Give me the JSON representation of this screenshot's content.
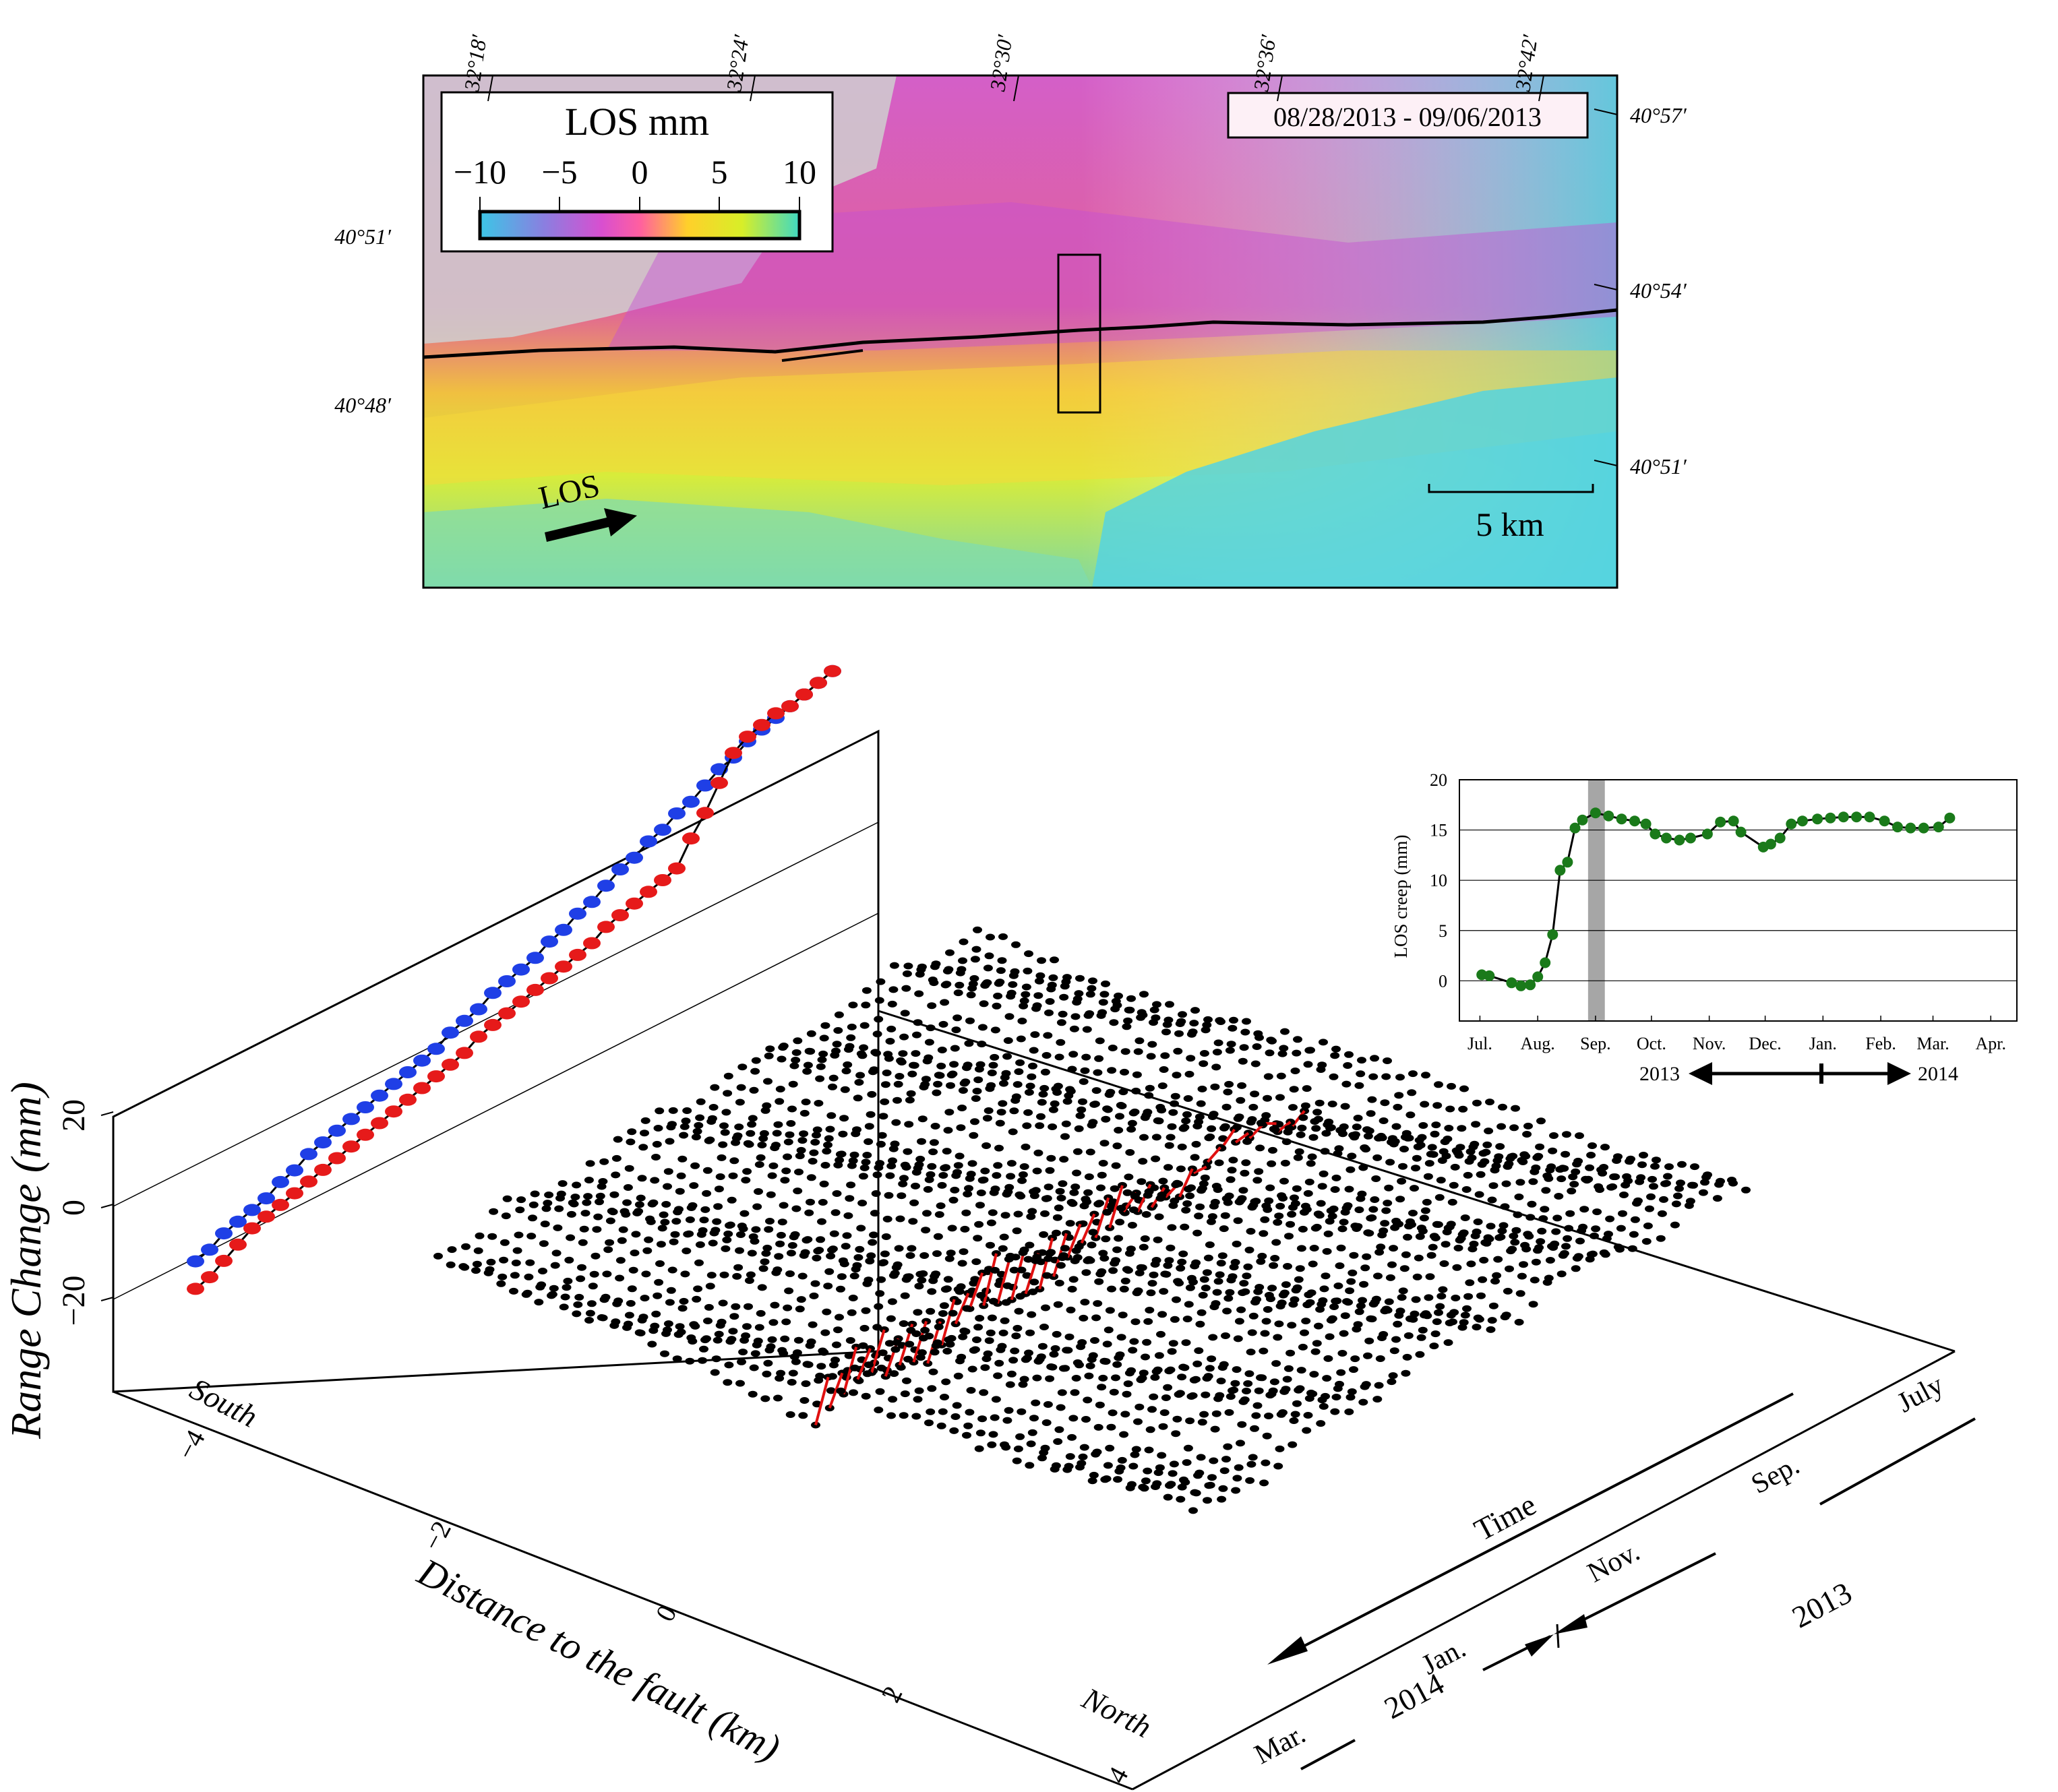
{
  "map": {
    "title": "LOS mm",
    "colorbar_ticks": [
      "−10",
      "−5",
      "0",
      "5",
      "10"
    ],
    "colorbar_colors": [
      "#3cc6e6",
      "#8a7fe0",
      "#d84fd0",
      "#ff5fa0",
      "#ffd02a",
      "#d8ee28",
      "#3fd9c2"
    ],
    "date_range": "08/28/2013 - 09/06/2013",
    "lon_ticks": [
      "32°18′",
      "32°24′",
      "32°30′",
      "32°36′",
      "32°42′"
    ],
    "lat_ticks_left": [
      "40°51′",
      "40°48′"
    ],
    "lat_ticks_right": [
      "40°57′",
      "40°54′",
      "40°51′"
    ],
    "los_label": "LOS",
    "scale_label": "5 km"
  },
  "inset": {
    "ylabel": "LOS creep (mm)",
    "ytick_labels": [
      "0",
      "5",
      "10",
      "15",
      "20"
    ],
    "xtick_labels": [
      "Jul.",
      "Aug.",
      "Sep.",
      "Oct.",
      "Nov.",
      "Dec.",
      "Jan.",
      "Feb.",
      "Mar.",
      "Apr."
    ],
    "year_left": "2013",
    "year_right": "2014",
    "shade_color": "#a6a6a6",
    "point_color": "#1a7a1a"
  },
  "main3d": {
    "zlabel": "Range Change (mm)",
    "ztick_labels": [
      "20",
      "0",
      "−20"
    ],
    "xlabel": "Distance to the fault (km)",
    "xtick_labels": [
      "−4",
      "−2",
      "0",
      "2",
      "4"
    ],
    "south_label": "South",
    "north_label": "North",
    "time_label": "Time",
    "month_labels": [
      "July",
      "Sep.",
      "Nov.",
      "Jan.",
      "Mar."
    ],
    "year_2013": "2013",
    "year_2014": "2014",
    "profile_colors": {
      "north_wall": "#1f3fe6",
      "south_wall": "#e61a1a",
      "points": "#000000",
      "fault_step": "#e01010"
    }
  },
  "chart_data": [
    {
      "type": "scatter",
      "title": "",
      "xlabel": "",
      "ylabel": "LOS creep (mm)",
      "xlim": [
        "Jul. 2013",
        "Apr. 2014"
      ],
      "ylim": [
        -4,
        20
      ],
      "shaded_period": [
        "08/28/2013",
        "09/06/2013"
      ],
      "grid": "horizontal",
      "x": [
        "2013-07-02",
        "2013-07-06",
        "2013-07-18",
        "2013-07-23",
        "2013-07-28",
        "2013-08-01",
        "2013-08-05",
        "2013-08-09",
        "2013-08-13",
        "2013-08-17",
        "2013-08-21",
        "2013-08-25",
        "2013-09-01",
        "2013-09-08",
        "2013-09-15",
        "2013-09-22",
        "2013-09-28",
        "2013-10-03",
        "2013-10-09",
        "2013-10-16",
        "2013-10-22",
        "2013-10-31",
        "2013-11-07",
        "2013-11-14",
        "2013-11-18",
        "2013-11-30",
        "2013-12-04",
        "2013-12-09",
        "2013-12-15",
        "2013-12-21",
        "2013-12-29",
        "2014-01-05",
        "2014-01-12",
        "2014-01-19",
        "2014-01-26",
        "2014-02-03",
        "2014-02-10",
        "2014-02-17",
        "2014-02-24",
        "2014-03-04",
        "2014-03-10"
      ],
      "y": [
        0.6,
        0.5,
        -0.2,
        -0.5,
        -0.4,
        0.4,
        1.8,
        4.6,
        11.0,
        11.8,
        15.2,
        16.0,
        16.7,
        16.4,
        16.1,
        15.9,
        15.6,
        14.6,
        14.2,
        14.0,
        14.2,
        14.6,
        15.8,
        15.9,
        14.8,
        13.3,
        13.6,
        14.2,
        15.6,
        15.9,
        16.1,
        16.2,
        16.3,
        16.3,
        16.3,
        15.9,
        15.3,
        15.2,
        15.2,
        15.3,
        16.2
      ]
    },
    {
      "type": "scatter",
      "title": "",
      "xlabel": "Distance to the fault (km)",
      "ylabel": "Range Change (mm)",
      "xlim": [
        -4,
        4
      ],
      "zlim": [
        -40,
        20
      ],
      "series": [
        {
          "name": "",
          "values": [
            -12,
            -11,
            -9,
            -8,
            -7,
            -6,
            -4,
            -3,
            -1,
            0,
            1,
            2,
            3,
            4,
            5,
            6,
            7,
            8,
            10,
            11,
            12,
            14,
            15,
            16,
            17,
            19,
            20,
            22,
            23,
            25,
            27,
            28,
            30,
            31,
            33,
            34,
            36,
            38,
            39,
            41,
            42,
            43,
            44,
            45,
            46,
            47
          ]
        },
        {
          "name": "",
          "values": [
            -18,
            -17,
            -15,
            -13,
            -11,
            -10,
            -9,
            -8,
            -7,
            -6,
            -5,
            -4,
            -3,
            -2,
            -1,
            0,
            1,
            2,
            3,
            4,
            6,
            7,
            8,
            9,
            10,
            11,
            12,
            13,
            14,
            16,
            17,
            18,
            19,
            20,
            21,
            26,
            30,
            35,
            40,
            42,
            43,
            44,
            44,
            45,
            46,
            47
          ]
        }
      ],
      "time_axis": [
        "July",
        "Sep.",
        "Nov.",
        "Jan.",
        "Mar."
      ]
    }
  ]
}
